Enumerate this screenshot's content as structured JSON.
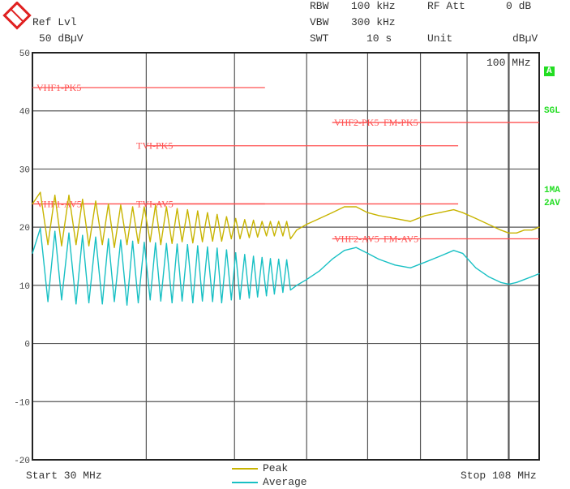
{
  "header": {
    "ref_lvl_label": "Ref Lvl",
    "ref_lvl_value": "50 dBµV",
    "rbw_label": "RBW",
    "rbw_value": "100 kHz",
    "vbw_label": "VBW",
    "vbw_value": "300 kHz",
    "swt_label": "SWT",
    "swt_value": "10 s",
    "rf_att_label": "RF Att",
    "rf_att_value": "0 dB",
    "unit_label": "Unit",
    "unit_value": "dBµV",
    "logo": "R&S"
  },
  "side_labels": {
    "a": "A",
    "sgl": "SGL",
    "ma": "1MA",
    "av": "2AV"
  },
  "marker_label": "100 MHz",
  "footer": {
    "start": "Start 30 MHz",
    "stop": "Stop 108 MHz"
  },
  "colors": {
    "peak": "#c8b400",
    "average": "#18c0c4",
    "limit": "#ff5050",
    "grid": "#555555",
    "status": "#22dd22"
  },
  "chart_data": {
    "type": "line",
    "x_scale": "log",
    "xlim": [
      30,
      108
    ],
    "ylim": [
      -20,
      50
    ],
    "xlabel": "",
    "ylabel": "",
    "yticks": [
      50,
      40,
      30,
      20,
      10,
      0,
      -10,
      -20
    ],
    "xgrid": [
      40,
      50,
      60,
      70,
      80,
      90,
      100
    ],
    "grid": true,
    "legend": "bottom-center",
    "series": [
      {
        "name": "Peak",
        "points": [
          [
            30,
            24
          ],
          [
            30.6,
            26
          ],
          [
            31.2,
            17
          ],
          [
            31.75,
            25.5
          ],
          [
            32.3,
            16.8
          ],
          [
            32.9,
            25.5
          ],
          [
            33.5,
            17
          ],
          [
            34.05,
            24.8
          ],
          [
            34.6,
            16.8
          ],
          [
            35.2,
            24.5
          ],
          [
            35.8,
            17
          ],
          [
            36.35,
            24
          ],
          [
            36.9,
            16.5
          ],
          [
            37.5,
            23.8
          ],
          [
            38.1,
            17
          ],
          [
            38.65,
            23.5
          ],
          [
            39.2,
            17.2
          ],
          [
            39.8,
            23.5
          ],
          [
            40.4,
            17.5
          ],
          [
            40.95,
            23.8
          ],
          [
            41.5,
            17
          ],
          [
            42.1,
            23.5
          ],
          [
            42.7,
            17.2
          ],
          [
            43.25,
            23.2
          ],
          [
            43.8,
            17.5
          ],
          [
            44.4,
            23
          ],
          [
            45,
            17.3
          ],
          [
            45.55,
            22.8
          ],
          [
            46.1,
            17.5
          ],
          [
            46.7,
            22.5
          ],
          [
            47.3,
            17.6
          ],
          [
            47.85,
            22.2
          ],
          [
            48.4,
            17.6
          ],
          [
            49,
            21.8
          ],
          [
            49.6,
            18
          ],
          [
            50.15,
            21.5
          ],
          [
            50.7,
            18
          ],
          [
            51.3,
            21.3
          ],
          [
            51.9,
            18.2
          ],
          [
            52.45,
            21.2
          ],
          [
            53,
            18.3
          ],
          [
            53.6,
            21
          ],
          [
            54.2,
            18.5
          ],
          [
            54.75,
            21
          ],
          [
            55.3,
            18.5
          ],
          [
            55.9,
            21
          ],
          [
            56.5,
            18.5
          ],
          [
            57.05,
            21
          ],
          [
            57.6,
            18
          ],
          [
            58.5,
            19.5
          ],
          [
            60,
            20.5
          ],
          [
            62,
            21.5
          ],
          [
            64,
            22.5
          ],
          [
            66,
            23.5
          ],
          [
            68,
            23.5
          ],
          [
            70,
            22.5
          ],
          [
            72,
            22
          ],
          [
            75,
            21.5
          ],
          [
            78,
            21
          ],
          [
            81,
            22
          ],
          [
            84,
            22.5
          ],
          [
            87,
            23
          ],
          [
            89,
            22.5
          ],
          [
            92,
            21.5
          ],
          [
            95,
            20.5
          ],
          [
            98,
            19.5
          ],
          [
            100,
            19
          ],
          [
            102,
            19
          ],
          [
            104,
            19.5
          ],
          [
            106,
            19.5
          ],
          [
            108,
            20
          ]
        ]
      },
      {
        "name": "Average",
        "points": [
          [
            30,
            15.5
          ],
          [
            30.6,
            19.8
          ],
          [
            31.2,
            7.2
          ],
          [
            31.75,
            19.3
          ],
          [
            32.3,
            7.5
          ],
          [
            32.9,
            19
          ],
          [
            33.5,
            6.8
          ],
          [
            34.05,
            18.6
          ],
          [
            34.6,
            7
          ],
          [
            35.2,
            18.3
          ],
          [
            35.8,
            6.8
          ],
          [
            36.35,
            18
          ],
          [
            36.9,
            7.2
          ],
          [
            37.5,
            17.8
          ],
          [
            38.1,
            6.6
          ],
          [
            38.65,
            17.6
          ],
          [
            39.2,
            7
          ],
          [
            39.8,
            17.4
          ],
          [
            40.4,
            7.5
          ],
          [
            40.95,
            17.3
          ],
          [
            41.5,
            7.3
          ],
          [
            42.1,
            17.2
          ],
          [
            42.7,
            7
          ],
          [
            43.25,
            17.1
          ],
          [
            43.8,
            7.3
          ],
          [
            44.4,
            17
          ],
          [
            45,
            7
          ],
          [
            45.55,
            16.8
          ],
          [
            46.1,
            7.3
          ],
          [
            46.7,
            16.6
          ],
          [
            47.3,
            7.2
          ],
          [
            47.85,
            16.4
          ],
          [
            48.4,
            7
          ],
          [
            49,
            16.1
          ],
          [
            49.6,
            7.5
          ],
          [
            50.15,
            15.6
          ],
          [
            50.7,
            7.6
          ],
          [
            51.3,
            15.3
          ],
          [
            51.9,
            7.8
          ],
          [
            52.45,
            15
          ],
          [
            53,
            8
          ],
          [
            53.6,
            14.8
          ],
          [
            54.2,
            8.2
          ],
          [
            54.75,
            14.6
          ],
          [
            55.3,
            8.5
          ],
          [
            55.9,
            14.5
          ],
          [
            56.5,
            8.8
          ],
          [
            57.05,
            14.4
          ],
          [
            57.6,
            9.2
          ],
          [
            58.5,
            10
          ],
          [
            60,
            11
          ],
          [
            62,
            12.5
          ],
          [
            64,
            14.5
          ],
          [
            66,
            16
          ],
          [
            68,
            16.5
          ],
          [
            70,
            15.5
          ],
          [
            72,
            14.5
          ],
          [
            75,
            13.5
          ],
          [
            78,
            13
          ],
          [
            81,
            14
          ],
          [
            84,
            15
          ],
          [
            87,
            16
          ],
          [
            89,
            15.5
          ],
          [
            92,
            13
          ],
          [
            95,
            11.5
          ],
          [
            98,
            10.5
          ],
          [
            100,
            10.2
          ],
          [
            102,
            10.5
          ],
          [
            104,
            11
          ],
          [
            106,
            11.5
          ],
          [
            108,
            12
          ]
        ]
      }
    ],
    "limit_lines": [
      {
        "label": "VHF1-PK5",
        "level": 44,
        "from": 30,
        "to": 54
      },
      {
        "label": "TVI-PK5",
        "level": 34,
        "from": 40,
        "to": 88
      },
      {
        "label": "VHF2-PK5",
        "level": 38,
        "from": 64,
        "to": 88
      },
      {
        "label": "FM-PK5",
        "level": 38,
        "from": 88,
        "to": 108
      },
      {
        "label": "VHF1-AV5",
        "level": 24,
        "from": 30,
        "to": 54
      },
      {
        "label": "TVI-AV5",
        "level": 24,
        "from": 40,
        "to": 88
      },
      {
        "label": "VHF2-AV5",
        "level": 18,
        "from": 64,
        "to": 88
      },
      {
        "label": "FM-AV5",
        "level": 18,
        "from": 88,
        "to": 108
      }
    ]
  }
}
